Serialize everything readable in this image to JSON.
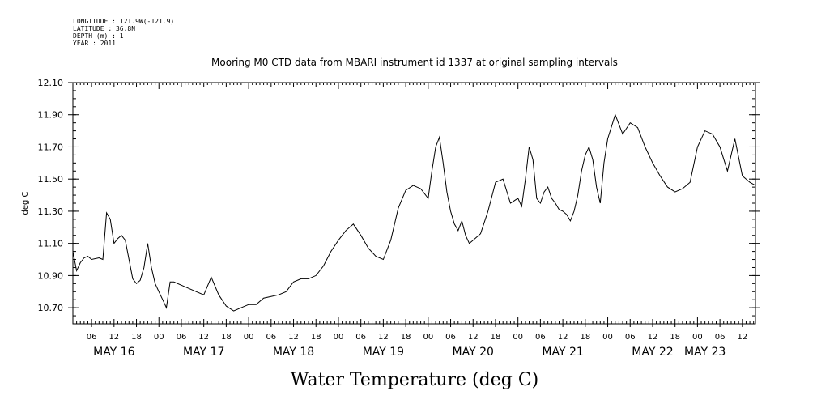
{
  "header": {
    "longitude": "LONGITUDE : 121.9W(-121.9)",
    "latitude": "LATITUDE : 36.8N",
    "depth": "DEPTH (m) : 1",
    "year": "YEAR : 2011"
  },
  "chart_data": {
    "type": "line",
    "title": "Mooring M0 CTD data from MBARI instrument id 1337 at original sampling intervals",
    "xlabel": "Water Temperature (deg C)",
    "ylabel": "deg C",
    "ylim": [
      10.6,
      12.1
    ],
    "xlim_hours": [
      1,
      183.5
    ],
    "y_ticks": [
      "10.70",
      "10.90",
      "11.10",
      "11.30",
      "11.50",
      "11.70",
      "11.90",
      "12.10"
    ],
    "x_hour_tick_labels": [
      "06",
      "12",
      "18",
      "00"
    ],
    "day_labels": [
      {
        "label": "MAY 16",
        "offset_hours": 12
      },
      {
        "label": "MAY 17",
        "offset_hours": 36
      },
      {
        "label": "MAY 18",
        "offset_hours": 60
      },
      {
        "label": "MAY 19",
        "offset_hours": 84
      },
      {
        "label": "MAY 20",
        "offset_hours": 108
      },
      {
        "label": "MAY 21",
        "offset_hours": 132
      },
      {
        "label": "MAY 22",
        "offset_hours": 156
      },
      {
        "label": "MAY 23",
        "offset_hours": 170
      }
    ],
    "series": [
      {
        "x": [
          1,
          2,
          3,
          4,
          5,
          6,
          8,
          9,
          10,
          11,
          12,
          13,
          14,
          15,
          16,
          17,
          18,
          19,
          20,
          21,
          22,
          23,
          24,
          25,
          26,
          27,
          28,
          30,
          32,
          34,
          36,
          38,
          40,
          42,
          44,
          46,
          48,
          50,
          52,
          54,
          56,
          58,
          60,
          62,
          64,
          66,
          68,
          70,
          72,
          74,
          76,
          78,
          80,
          82,
          84,
          86,
          88,
          90,
          92,
          94,
          96,
          97,
          98,
          99,
          100,
          101,
          102,
          103,
          104,
          105,
          106,
          107,
          108,
          110,
          112,
          114,
          116,
          118,
          120,
          121,
          122,
          123,
          124,
          125,
          126,
          127,
          128,
          129,
          130,
          131,
          132,
          133,
          134,
          135,
          136,
          137,
          138,
          139,
          140,
          141,
          142,
          143,
          144,
          146,
          148,
          150,
          152,
          154,
          156,
          158,
          160,
          162,
          164,
          166,
          168,
          170,
          172,
          174,
          176,
          178,
          180,
          182,
          183.5
        ],
        "y": [
          11.05,
          10.93,
          10.98,
          11.01,
          11.02,
          11.0,
          11.01,
          11.0,
          11.29,
          11.25,
          11.1,
          11.13,
          11.15,
          11.12,
          11.0,
          10.88,
          10.85,
          10.87,
          10.95,
          11.1,
          10.95,
          10.85,
          10.8,
          10.75,
          10.7,
          10.86,
          10.86,
          10.84,
          10.82,
          10.8,
          10.78,
          10.89,
          10.78,
          10.71,
          10.68,
          10.7,
          10.72,
          10.72,
          10.76,
          10.77,
          10.78,
          10.8,
          10.86,
          10.88,
          10.88,
          10.9,
          10.96,
          11.05,
          11.12,
          11.18,
          11.22,
          11.15,
          11.07,
          11.02,
          11.0,
          11.12,
          11.32,
          11.43,
          11.46,
          11.44,
          11.38,
          11.55,
          11.7,
          11.76,
          11.6,
          11.42,
          11.3,
          11.22,
          11.18,
          11.24,
          11.15,
          11.1,
          11.12,
          11.16,
          11.3,
          11.48,
          11.5,
          11.35,
          11.38,
          11.33,
          11.5,
          11.7,
          11.62,
          11.38,
          11.35,
          11.42,
          11.45,
          11.38,
          11.35,
          11.31,
          11.3,
          11.28,
          11.24,
          11.3,
          11.4,
          11.55,
          11.65,
          11.7,
          11.62,
          11.45,
          11.35,
          11.6,
          11.75,
          11.9,
          11.78,
          11.85,
          11.82,
          11.7,
          11.6,
          11.52,
          11.45,
          11.42,
          11.44,
          11.48,
          11.7,
          11.8,
          11.78,
          11.7,
          11.55,
          11.75,
          11.52,
          11.48,
          11.46
        ]
      }
    ],
    "axes": {
      "frame": "box",
      "grid": false
    }
  }
}
